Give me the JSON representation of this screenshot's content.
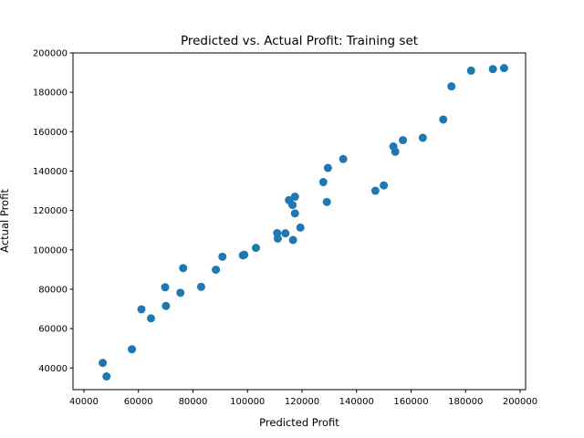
{
  "chart_data": {
    "type": "scatter",
    "title": "Predicted vs. Actual Profit: Training set",
    "xlabel": "Predicted Profit",
    "ylabel": "Actual Profit",
    "xlim": [
      36000,
      202000
    ],
    "ylim": [
      29000,
      200000
    ],
    "xticks": [
      40000,
      60000,
      80000,
      100000,
      120000,
      140000,
      160000,
      180000,
      200000
    ],
    "yticks": [
      40000,
      60000,
      80000,
      100000,
      120000,
      140000,
      160000,
      180000,
      200000
    ],
    "xtick_labels": [
      "40000",
      "60000",
      "80000",
      "100000",
      "120000",
      "140000",
      "160000",
      "180000",
      "200000"
    ],
    "ytick_labels": [
      "40000",
      "60000",
      "80000",
      "100000",
      "120000",
      "140000",
      "160000",
      "180000",
      "200000"
    ],
    "grid": false,
    "legend": false,
    "marker_color": "#1f77b4",
    "points": [
      {
        "x": 194100,
        "y": 192300
      },
      {
        "x": 190000,
        "y": 191800
      },
      {
        "x": 182000,
        "y": 191000
      },
      {
        "x": 174800,
        "y": 183000
      },
      {
        "x": 171800,
        "y": 166200
      },
      {
        "x": 164300,
        "y": 156900
      },
      {
        "x": 157000,
        "y": 155700
      },
      {
        "x": 153500,
        "y": 152500
      },
      {
        "x": 154200,
        "y": 149800
      },
      {
        "x": 135100,
        "y": 146100
      },
      {
        "x": 129500,
        "y": 141600
      },
      {
        "x": 127800,
        "y": 134400
      },
      {
        "x": 150000,
        "y": 132700
      },
      {
        "x": 146900,
        "y": 130000
      },
      {
        "x": 117400,
        "y": 127000
      },
      {
        "x": 115200,
        "y": 125200
      },
      {
        "x": 129100,
        "y": 124300
      },
      {
        "x": 116500,
        "y": 122800
      },
      {
        "x": 117400,
        "y": 118500
      },
      {
        "x": 119400,
        "y": 111300
      },
      {
        "x": 110900,
        "y": 108500
      },
      {
        "x": 113900,
        "y": 108400
      },
      {
        "x": 111100,
        "y": 105700
      },
      {
        "x": 116700,
        "y": 105000
      },
      {
        "x": 103100,
        "y": 101000
      },
      {
        "x": 98800,
        "y": 97500
      },
      {
        "x": 98300,
        "y": 97200
      },
      {
        "x": 90800,
        "y": 96500
      },
      {
        "x": 76400,
        "y": 90700
      },
      {
        "x": 88400,
        "y": 89900
      },
      {
        "x": 83000,
        "y": 81200
      },
      {
        "x": 69800,
        "y": 81000
      },
      {
        "x": 75400,
        "y": 78200
      },
      {
        "x": 70100,
        "y": 71500
      },
      {
        "x": 61100,
        "y": 69800
      },
      {
        "x": 64600,
        "y": 65200
      },
      {
        "x": 57600,
        "y": 49500
      },
      {
        "x": 46900,
        "y": 42600
      },
      {
        "x": 48300,
        "y": 35700
      }
    ]
  }
}
